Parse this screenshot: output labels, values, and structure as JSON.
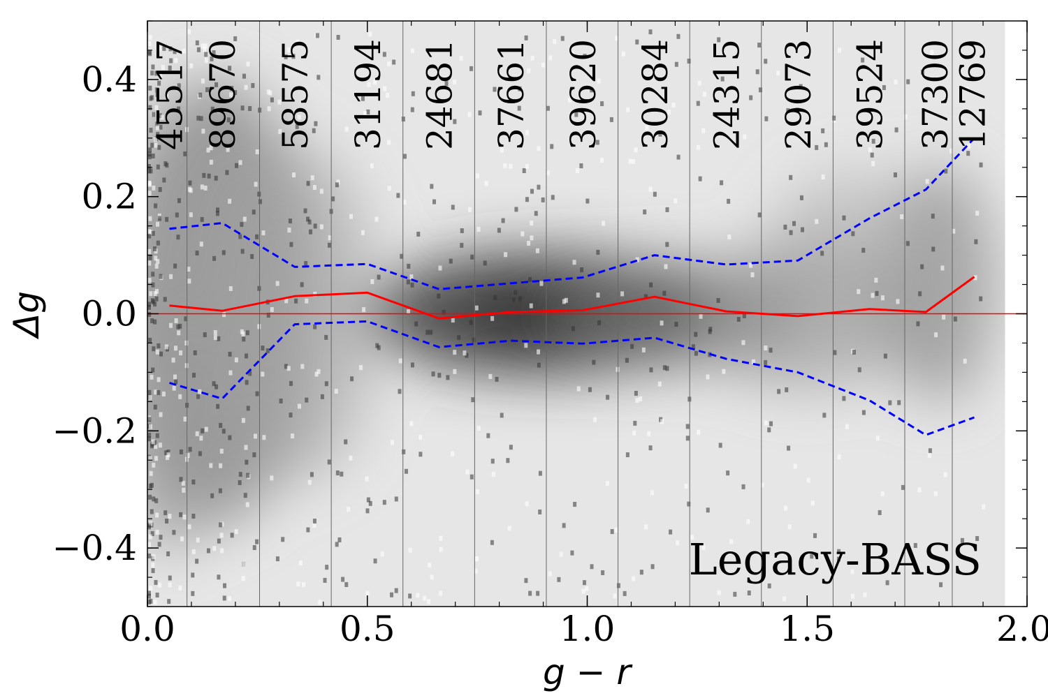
{
  "chart_data": {
    "type": "line",
    "xlabel": "g − r",
    "ylabel": "Δg",
    "xlim": [
      0.0,
      2.0
    ],
    "ylim": [
      -0.5,
      0.5
    ],
    "xticks": [
      0.0,
      0.5,
      1.0,
      1.5,
      2.0
    ],
    "xtick_labels": [
      "0.0",
      "0.5",
      "1.0",
      "1.5",
      "2.0"
    ],
    "yticks": [
      -0.4,
      -0.2,
      0.0,
      0.2,
      0.4
    ],
    "ytick_labels": [
      "−0.4",
      "−0.2",
      "0.0",
      "0.2",
      "0.4"
    ],
    "annotation": "Legacy-BASS",
    "background": "grayscale 2D density histogram of Δg vs g − r",
    "bin_edges": [
      0.09,
      0.255,
      0.418,
      0.581,
      0.744,
      0.907,
      1.07,
      1.233,
      1.396,
      1.559,
      1.722,
      1.83
    ],
    "bin_counts": [
      {
        "x": 0.05,
        "count": "45517"
      },
      {
        "x": 0.17,
        "count": "89670"
      },
      {
        "x": 0.335,
        "count": "58575"
      },
      {
        "x": 0.5,
        "count": "31194"
      },
      {
        "x": 0.663,
        "count": "24681"
      },
      {
        "x": 0.826,
        "count": "37661"
      },
      {
        "x": 0.99,
        "count": "39620"
      },
      {
        "x": 1.153,
        "count": "30284"
      },
      {
        "x": 1.316,
        "count": "24315"
      },
      {
        "x": 1.479,
        "count": "29073"
      },
      {
        "x": 1.642,
        "count": "39524"
      },
      {
        "x": 1.79,
        "count": "37300"
      },
      {
        "x": 1.875,
        "count": "12769"
      }
    ],
    "series": [
      {
        "role": "median",
        "color": "#ff0000",
        "style": "solid",
        "x": [
          0.05,
          0.17,
          0.335,
          0.5,
          0.663,
          0.826,
          0.99,
          1.153,
          1.316,
          1.479,
          1.642,
          1.77,
          1.88
        ],
        "y": [
          0.014,
          0.005,
          0.03,
          0.036,
          -0.008,
          0.003,
          0.006,
          0.029,
          0.004,
          -0.004,
          0.008,
          0.003,
          0.063
        ]
      },
      {
        "role": "upper-envelope",
        "color": "#0000ff",
        "style": "dashed",
        "x": [
          0.05,
          0.17,
          0.335,
          0.5,
          0.663,
          0.826,
          0.99,
          1.153,
          1.316,
          1.479,
          1.642,
          1.77,
          1.88
        ],
        "y": [
          0.145,
          0.155,
          0.08,
          0.085,
          0.042,
          0.052,
          0.062,
          0.1,
          0.084,
          0.091,
          0.163,
          0.212,
          0.3
        ]
      },
      {
        "role": "lower-envelope",
        "color": "#0000ff",
        "style": "dashed",
        "x": [
          0.05,
          0.17,
          0.335,
          0.5,
          0.663,
          0.826,
          0.99,
          1.153,
          1.316,
          1.479,
          1.642,
          1.77,
          1.88
        ],
        "y": [
          -0.118,
          -0.145,
          -0.018,
          -0.013,
          -0.057,
          -0.046,
          -0.051,
          -0.041,
          -0.077,
          -0.1,
          -0.148,
          -0.207,
          -0.177
        ]
      }
    ],
    "zero_line": {
      "y": 0.0,
      "color": "#ff0000"
    }
  }
}
